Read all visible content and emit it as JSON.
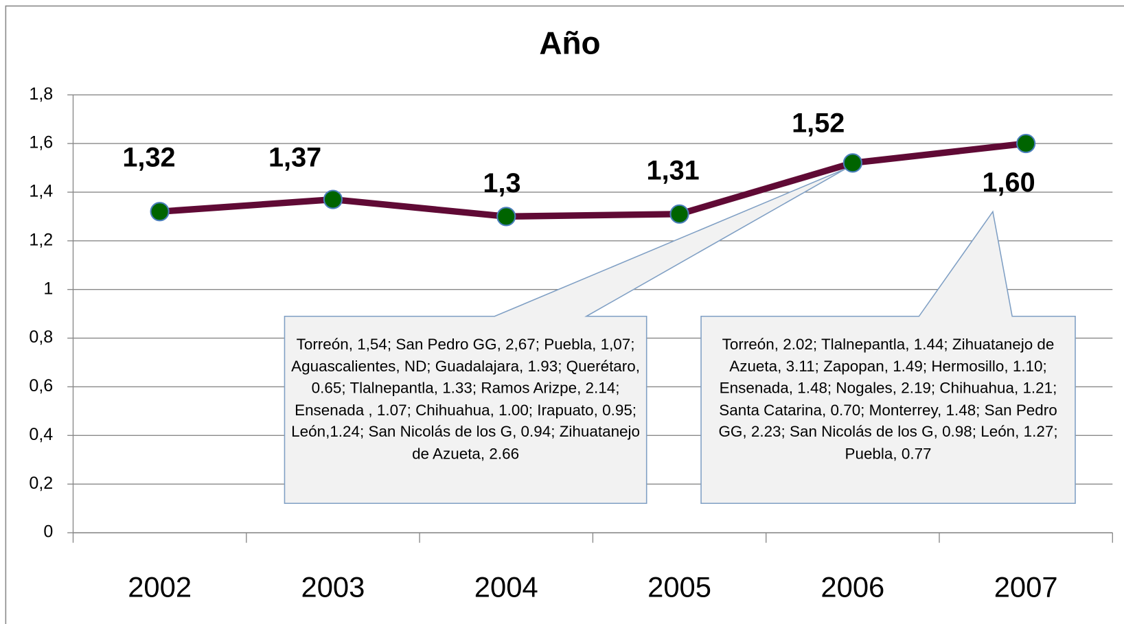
{
  "chart_data": {
    "type": "line",
    "title": "Año",
    "categories": [
      "2002",
      "2003",
      "2004",
      "2005",
      "2006",
      "2007"
    ],
    "values": [
      1.32,
      1.37,
      1.3,
      1.31,
      1.52,
      1.6
    ],
    "value_labels": [
      "1,32",
      "1,37",
      "1,3",
      "1,31",
      "1,52",
      "1,60"
    ],
    "color": "#600a35",
    "marker_color": "#006400",
    "ylim": [
      0,
      1.8
    ],
    "yticks": [
      0,
      {
        "value": 0.2,
        "label": "0,2"
      },
      {
        "value": 0.4,
        "label": "0,4"
      },
      {
        "value": 0.6,
        "label": "0,6"
      },
      {
        "value": 0.8,
        "label": "0,8"
      },
      1,
      {
        "value": 1.2,
        "label": "1,2"
      },
      {
        "value": 1.4,
        "label": "1,4"
      },
      {
        "value": 1.6,
        "label": "1,6"
      },
      {
        "value": 1.8,
        "label": "1,8"
      }
    ],
    "grid": true,
    "annotations": [
      {
        "text": "Torreón, 1,54; San Pedro GG, 2,67; Puebla, 1,07; Aguascalientes, ND; Guadalajara, 1.93; Querétaro, 0.65; Tlalnepantla, 1.33; Ramos Arizpe, 2.14; Ensenada , 1.07; Chihuahua, 1.00; Irapuato, 0.95; León,1.24; San Nicolás de los G, 0.94; Zihuatanejo de Azueta, 2.66"
      },
      {
        "text": "Torreón, 2.02; Tlalnepantla, 1.44; Zihuatanejo de Azueta, 3.11; Zapopan, 1.49; Hermosillo, 1.10; Ensenada, 1.48; Nogales, 2.19; Chihuahua, 1.21; Santa Catarina, 0.70; Monterrey, 1.48; San Pedro GG, 2.23; San Nicolás de los G, 0.98; León, 1.27; Puebla, 0.77"
      }
    ]
  }
}
